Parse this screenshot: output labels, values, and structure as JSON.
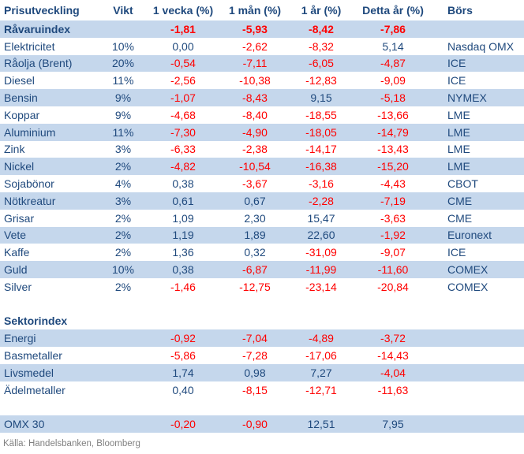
{
  "colors": {
    "shaded_row": "#c5d7ec",
    "text": "#1f497d",
    "negative": "#ff0000",
    "source_text": "#808080",
    "background": "#ffffff"
  },
  "source_note": "Källa: Handelsbanken, Bloomberg",
  "table": {
    "columns": [
      "Prisutveckling",
      "Vikt",
      "1 vecka (%)",
      "1 mån (%)",
      "1 år (%)",
      "Detta år (%)",
      "Börs"
    ],
    "rows": [
      {
        "kind": "data",
        "name": "Råvaruindex",
        "vikt": "",
        "values": [
          "-1,81",
          "-5,93",
          "-8,42",
          "-7,86"
        ],
        "bors": "",
        "bold": true,
        "shaded": true
      },
      {
        "kind": "data",
        "name": "Elektricitet",
        "vikt": "10%",
        "values": [
          "0,00",
          "-2,62",
          "-8,32",
          "5,14"
        ],
        "bors": "Nasdaq OMX",
        "bold": false,
        "shaded": false
      },
      {
        "kind": "data",
        "name": "Råolja (Brent)",
        "vikt": "20%",
        "values": [
          "-0,54",
          "-7,11",
          "-6,05",
          "-4,87"
        ],
        "bors": "ICE",
        "bold": false,
        "shaded": true
      },
      {
        "kind": "data",
        "name": "Diesel",
        "vikt": "11%",
        "values": [
          "-2,56",
          "-10,38",
          "-12,83",
          "-9,09"
        ],
        "bors": "ICE",
        "bold": false,
        "shaded": false
      },
      {
        "kind": "data",
        "name": "Bensin",
        "vikt": "9%",
        "values": [
          "-1,07",
          "-8,43",
          "9,15",
          "-5,18"
        ],
        "bors": "NYMEX",
        "bold": false,
        "shaded": true
      },
      {
        "kind": "data",
        "name": "Koppar",
        "vikt": "9%",
        "values": [
          "-4,68",
          "-8,40",
          "-18,55",
          "-13,66"
        ],
        "bors": "LME",
        "bold": false,
        "shaded": false
      },
      {
        "kind": "data",
        "name": "Aluminium",
        "vikt": "11%",
        "values": [
          "-7,30",
          "-4,90",
          "-18,05",
          "-14,79"
        ],
        "bors": "LME",
        "bold": false,
        "shaded": true
      },
      {
        "kind": "data",
        "name": "Zink",
        "vikt": "3%",
        "values": [
          "-6,33",
          "-2,38",
          "-14,17",
          "-13,43"
        ],
        "bors": "LME",
        "bold": false,
        "shaded": false
      },
      {
        "kind": "data",
        "name": "Nickel",
        "vikt": "2%",
        "values": [
          "-4,82",
          "-10,54",
          "-16,38",
          "-15,20"
        ],
        "bors": "LME",
        "bold": false,
        "shaded": true
      },
      {
        "kind": "data",
        "name": "Sojabönor",
        "vikt": "4%",
        "values": [
          "0,38",
          "-3,67",
          "-3,16",
          "-4,43"
        ],
        "bors": "CBOT",
        "bold": false,
        "shaded": false
      },
      {
        "kind": "data",
        "name": "Nötkreatur",
        "vikt": "3%",
        "values": [
          "0,61",
          "0,67",
          "-2,28",
          "-7,19"
        ],
        "bors": "CME",
        "bold": false,
        "shaded": true
      },
      {
        "kind": "data",
        "name": "Grisar",
        "vikt": "2%",
        "values": [
          "1,09",
          "2,30",
          "15,47",
          "-3,63"
        ],
        "bors": "CME",
        "bold": false,
        "shaded": false
      },
      {
        "kind": "data",
        "name": "Vete",
        "vikt": "2%",
        "values": [
          "1,19",
          "1,89",
          "22,60",
          "-1,92"
        ],
        "bors": "Euronext",
        "bold": false,
        "shaded": true
      },
      {
        "kind": "data",
        "name": "Kaffe",
        "vikt": "2%",
        "values": [
          "1,36",
          "0,32",
          "-31,09",
          "-9,07"
        ],
        "bors": "ICE",
        "bold": false,
        "shaded": false
      },
      {
        "kind": "data",
        "name": "Guld",
        "vikt": "10%",
        "values": [
          "0,38",
          "-6,87",
          "-11,99",
          "-11,60"
        ],
        "bors": "COMEX",
        "bold": false,
        "shaded": true
      },
      {
        "kind": "data",
        "name": "Silver",
        "vikt": "2%",
        "values": [
          "-1,46",
          "-12,75",
          "-23,14",
          "-20,84"
        ],
        "bors": "COMEX",
        "bold": false,
        "shaded": false
      },
      {
        "kind": "spacer"
      },
      {
        "kind": "section",
        "name": "Sektorindex",
        "vikt": "",
        "values": [
          "",
          "",
          "",
          ""
        ],
        "bors": "",
        "bold": true,
        "shaded": false
      },
      {
        "kind": "data",
        "name": "Energi",
        "vikt": "",
        "values": [
          "-0,92",
          "-7,04",
          "-4,89",
          "-3,72"
        ],
        "bors": "",
        "bold": false,
        "shaded": true
      },
      {
        "kind": "data",
        "name": "Basmetaller",
        "vikt": "",
        "values": [
          "-5,86",
          "-7,28",
          "-17,06",
          "-14,43"
        ],
        "bors": "",
        "bold": false,
        "shaded": false
      },
      {
        "kind": "data",
        "name": "Livsmedel",
        "vikt": "",
        "values": [
          "1,74",
          "0,98",
          "7,27",
          "-4,04"
        ],
        "bors": "",
        "bold": false,
        "shaded": true
      },
      {
        "kind": "data",
        "name": "Ädelmetaller",
        "vikt": "",
        "values": [
          "0,40",
          "-8,15",
          "-12,71",
          "-11,63"
        ],
        "bors": "",
        "bold": false,
        "shaded": false
      },
      {
        "kind": "spacer"
      },
      {
        "kind": "data",
        "name": "OMX 30",
        "vikt": "",
        "values": [
          "-0,20",
          "-0,90",
          "12,51",
          "7,95"
        ],
        "bors": "",
        "bold": false,
        "shaded": true
      }
    ]
  }
}
